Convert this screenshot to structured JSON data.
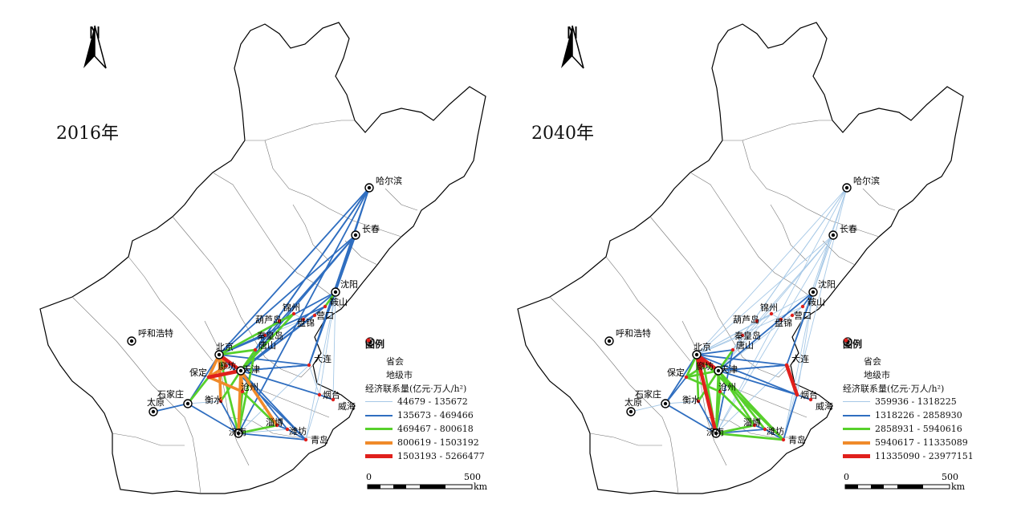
{
  "panels": [
    {
      "id": "2016",
      "year_label": "2016年",
      "legend_title": "图例",
      "legend_province": "省会",
      "legend_city": "地级市",
      "legend_flow_title": "经济联系量(亿元·万人/h²)",
      "flow_classes": [
        {
          "range": "44679 - 135672",
          "color": "#a6c8e6",
          "width": 1
        },
        {
          "range": "135673 - 469466",
          "color": "#2f6ec0",
          "width": 2
        },
        {
          "range": "469467 - 800618",
          "color": "#57d02b",
          "width": 3
        },
        {
          "range": "800619 - 1503192",
          "color": "#f08a2a",
          "width": 4
        },
        {
          "range": "1503193 - 5266477",
          "color": "#e0201c",
          "width": 5
        }
      ],
      "scale_zero": "0",
      "scale_max": "500",
      "scale_unit": "km"
    },
    {
      "id": "2040",
      "year_label": "2040年",
      "legend_title": "图例",
      "legend_province": "省会",
      "legend_city": "地级市",
      "legend_flow_title": "经济联系量(亿元·万人/h²)",
      "flow_classes": [
        {
          "range": "359936 - 1318225",
          "color": "#a6c8e6",
          "width": 1
        },
        {
          "range": "1318226 - 2858930",
          "color": "#2f6ec0",
          "width": 2
        },
        {
          "range": "2858931 - 5940616",
          "color": "#57d02b",
          "width": 3
        },
        {
          "range": "5940617 - 11335089",
          "color": "#f08a2a",
          "width": 4
        },
        {
          "range": "11335090 - 23977151",
          "color": "#e0201c",
          "width": 5
        }
      ],
      "scale_zero": "0",
      "scale_max": "500",
      "scale_unit": "km"
    }
  ],
  "north_label": "N",
  "cities": {
    "haerbin": "哈尔滨",
    "changchun": "长春",
    "shenyang": "沈阳",
    "anshan": "鞍山",
    "jinzhou": "锦州",
    "yingkou": "营口",
    "huludao": "葫芦岛",
    "panjin": "盘锦",
    "qinhuangdao": "秦皇岛",
    "dalian": "大连",
    "huhehaote": "呼和浩特",
    "beijing": "北京",
    "langfang": "廊坊",
    "tianjin": "天津",
    "tangshan": "唐山",
    "baoding": "保定",
    "cangzhou": "沧州",
    "shijiazhuang": "石家庄",
    "taiyuan": "太原",
    "hengshui": "衡水",
    "jinan": "济南",
    "zibo": "淄博",
    "weifang": "潍坊",
    "qingdao": "青岛",
    "yantai": "烟台",
    "weihai": "威海"
  }
}
